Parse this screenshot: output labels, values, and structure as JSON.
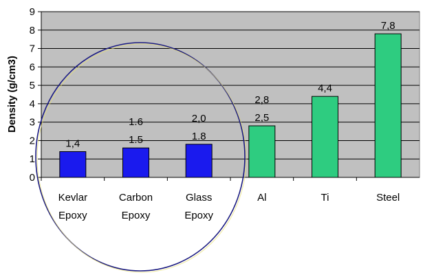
{
  "chart_data": {
    "type": "bar",
    "title": "",
    "xlabel": "",
    "ylabel": "Density (g/cm3)",
    "ylim": [
      0,
      9
    ],
    "yticks": [
      0,
      1,
      2,
      3,
      4,
      5,
      6,
      7,
      8,
      9
    ],
    "grid": true,
    "categories": [
      {
        "line1": "Kevlar",
        "line2": "Epoxy"
      },
      {
        "line1": "Carbon",
        "line2": "Epoxy"
      },
      {
        "line1": "Glass",
        "line2": "Epoxy"
      },
      {
        "line1": "Al",
        "line2": ""
      },
      {
        "line1": "Ti",
        "line2": ""
      },
      {
        "line1": "Steel",
        "line2": ""
      }
    ],
    "values": [
      1.4,
      1.6,
      1.8,
      2.8,
      4.4,
      7.8
    ],
    "data_labels": [
      [
        "1,4"
      ],
      [
        "1.6",
        "1.5"
      ],
      [
        "2,0",
        "1.8"
      ],
      [
        "2,8",
        "2,5"
      ],
      [
        "4,4"
      ],
      [
        "7,8"
      ]
    ],
    "bar_colors": [
      "#1a1aee",
      "#1a1aee",
      "#1a1aee",
      "#2ecc80",
      "#2ecc80",
      "#2ecc80"
    ],
    "plot_bg": "#c0c0c0",
    "highlight_ellipse_color": "#1a1a80"
  }
}
